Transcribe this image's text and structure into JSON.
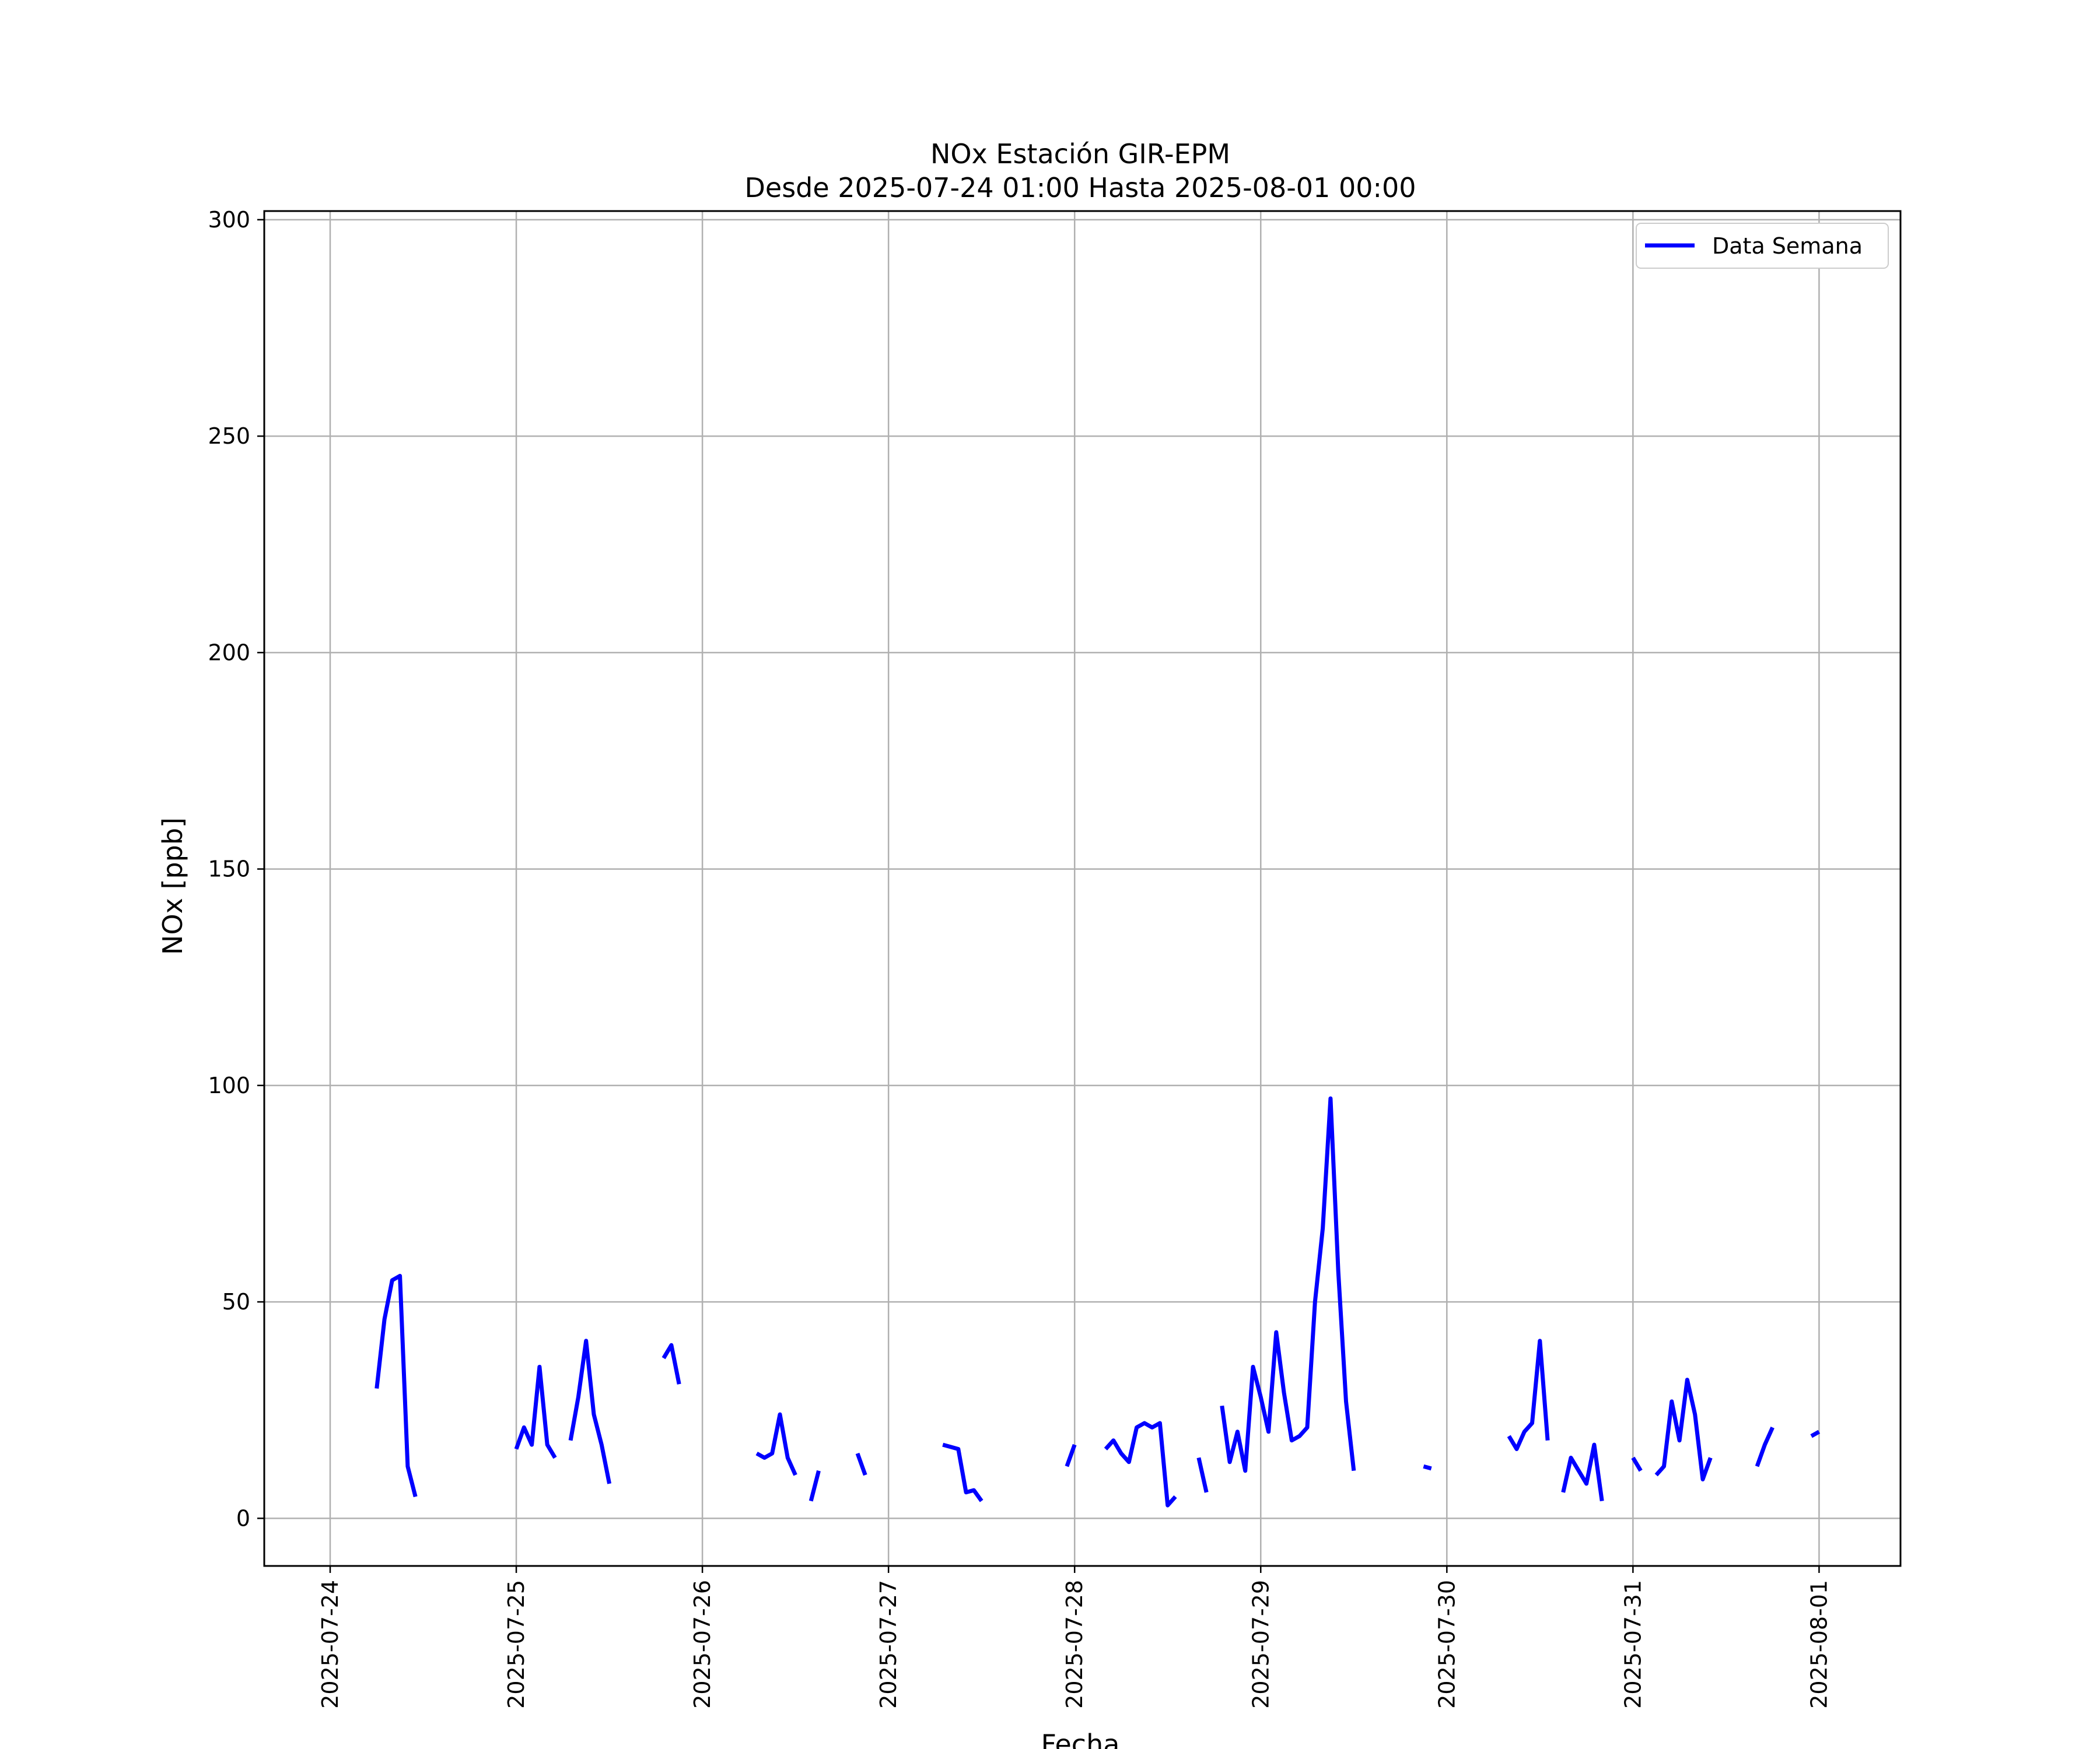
{
  "chart_data": {
    "type": "line",
    "title": "NOx Estación GIR-EPM",
    "subtitle": "Desde 2025-07-24 01:00 Hasta 2025-08-01 00:00",
    "xlabel": "Fecha",
    "ylabel": "NOx [ppb]",
    "ylim": [
      -11,
      302
    ],
    "xlim": [
      "2025-07-23 15:30",
      "2025-08-01 10:30"
    ],
    "yticks": [
      0,
      50,
      100,
      150,
      200,
      250,
      300
    ],
    "xticks": [
      "2025-07-24",
      "2025-07-25",
      "2025-07-26",
      "2025-07-27",
      "2025-07-28",
      "2025-07-29",
      "2025-07-30",
      "2025-07-31",
      "2025-08-01"
    ],
    "grid": true,
    "legend_position": "upper right",
    "series": [
      {
        "name": "Data Semana",
        "color": "#0000ff",
        "segments": [
          [
            [
              "2025-07-24 06:00",
              30
            ],
            [
              "2025-07-24 07:00",
              46
            ],
            [
              "2025-07-24 08:00",
              55
            ],
            [
              "2025-07-24 09:00",
              56
            ],
            [
              "2025-07-24 10:00",
              12
            ],
            [
              "2025-07-24 11:00",
              5
            ]
          ],
          [
            [
              "2025-07-25 00:00",
              16
            ],
            [
              "2025-07-25 01:00",
              21
            ],
            [
              "2025-07-25 02:00",
              17
            ],
            [
              "2025-07-25 03:00",
              35
            ],
            [
              "2025-07-25 04:00",
              17
            ],
            [
              "2025-07-25 05:00",
              14
            ]
          ],
          [
            [
              "2025-07-25 07:00",
              18
            ],
            [
              "2025-07-25 08:00",
              28
            ],
            [
              "2025-07-25 09:00",
              41
            ],
            [
              "2025-07-25 10:00",
              24
            ],
            [
              "2025-07-25 11:00",
              17
            ],
            [
              "2025-07-25 12:00",
              8
            ]
          ],
          [
            [
              "2025-07-25 19:00",
              37
            ],
            [
              "2025-07-25 20:00",
              40
            ],
            [
              "2025-07-25 21:00",
              31
            ]
          ],
          [
            [
              "2025-07-26 07:00",
              15
            ],
            [
              "2025-07-26 08:00",
              14
            ],
            [
              "2025-07-26 09:00",
              15
            ],
            [
              "2025-07-26 10:00",
              24
            ],
            [
              "2025-07-26 11:00",
              14
            ],
            [
              "2025-07-26 12:00",
              10
            ]
          ],
          [
            [
              "2025-07-26 14:00",
              4
            ],
            [
              "2025-07-26 15:00",
              11
            ]
          ],
          [
            [
              "2025-07-26 20:00",
              15
            ],
            [
              "2025-07-26 21:00",
              10
            ]
          ],
          [
            [
              "2025-07-27 07:00",
              17
            ],
            [
              "2025-07-27 08:00",
              16.5
            ],
            [
              "2025-07-27 09:00",
              16
            ],
            [
              "2025-07-27 10:00",
              6
            ],
            [
              "2025-07-27 11:00",
              6.5
            ],
            [
              "2025-07-27 12:00",
              4
            ]
          ],
          [
            [
              "2025-07-27 23:00",
              12
            ],
            [
              "2025-07-28 00:00",
              17
            ]
          ],
          [
            [
              "2025-07-28 04:00",
              16
            ],
            [
              "2025-07-28 05:00",
              18
            ],
            [
              "2025-07-28 06:00",
              15
            ],
            [
              "2025-07-28 07:00",
              13
            ],
            [
              "2025-07-28 08:00",
              21
            ],
            [
              "2025-07-28 09:00",
              22
            ],
            [
              "2025-07-28 10:00",
              21
            ],
            [
              "2025-07-28 11:00",
              22
            ],
            [
              "2025-07-28 12:00",
              3
            ],
            [
              "2025-07-28 13:00",
              5
            ]
          ],
          [
            [
              "2025-07-28 16:00",
              14
            ],
            [
              "2025-07-28 17:00",
              6
            ]
          ],
          [
            [
              "2025-07-28 19:00",
              26
            ],
            [
              "2025-07-28 20:00",
              13
            ],
            [
              "2025-07-28 21:00",
              20
            ],
            [
              "2025-07-28 22:00",
              11
            ],
            [
              "2025-07-28 23:00",
              35
            ],
            [
              "2025-07-29 00:00",
              28
            ],
            [
              "2025-07-29 01:00",
              20
            ],
            [
              "2025-07-29 02:00",
              43
            ],
            [
              "2025-07-29 03:00",
              29
            ],
            [
              "2025-07-29 04:00",
              18
            ],
            [
              "2025-07-29 05:00",
              19
            ],
            [
              "2025-07-29 06:00",
              21
            ],
            [
              "2025-07-29 07:00",
              50
            ],
            [
              "2025-07-29 08:00",
              67
            ],
            [
              "2025-07-29 09:00",
              97
            ],
            [
              "2025-07-29 10:00",
              57
            ],
            [
              "2025-07-29 11:00",
              27
            ],
            [
              "2025-07-29 12:00",
              11
            ]
          ],
          [
            [
              "2025-07-29 21:00",
              12
            ],
            [
              "2025-07-29 22:00",
              11.5
            ]
          ],
          [
            [
              "2025-07-30 08:00",
              19
            ],
            [
              "2025-07-30 09:00",
              16
            ],
            [
              "2025-07-30 10:00",
              20
            ],
            [
              "2025-07-30 11:00",
              22
            ],
            [
              "2025-07-30 12:00",
              41
            ],
            [
              "2025-07-30 13:00",
              18
            ]
          ],
          [
            [
              "2025-07-30 15:00",
              6
            ],
            [
              "2025-07-30 16:00",
              14
            ],
            [
              "2025-07-30 17:00",
              11
            ],
            [
              "2025-07-30 18:00",
              8
            ],
            [
              "2025-07-30 19:00",
              17
            ],
            [
              "2025-07-30 20:00",
              4
            ]
          ],
          [
            [
              "2025-07-31 00:00",
              14
            ],
            [
              "2025-07-31 01:00",
              11
            ]
          ],
          [
            [
              "2025-07-31 03:00",
              10
            ],
            [
              "2025-07-31 04:00",
              12
            ],
            [
              "2025-07-31 05:00",
              27
            ],
            [
              "2025-07-31 06:00",
              18
            ],
            [
              "2025-07-31 07:00",
              32
            ],
            [
              "2025-07-31 08:00",
              24
            ],
            [
              "2025-07-31 09:00",
              9
            ],
            [
              "2025-07-31 10:00",
              14
            ]
          ],
          [
            [
              "2025-07-31 16:00",
              12
            ],
            [
              "2025-07-31 17:00",
              17
            ],
            [
              "2025-07-31 18:00",
              21
            ]
          ],
          [
            [
              "2025-07-31 23:00",
              19
            ],
            [
              "2025-08-01 00:00",
              20
            ]
          ]
        ]
      }
    ]
  }
}
